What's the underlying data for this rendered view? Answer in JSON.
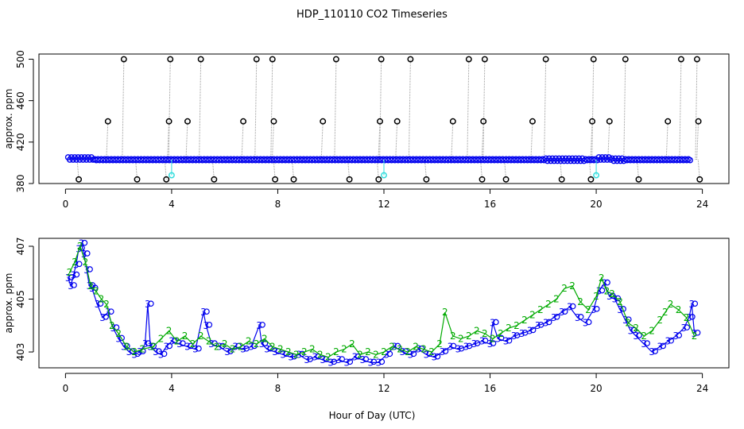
{
  "chart_data": {
    "title": "HDP_110110  CO2 Timeseries",
    "xlabel": "Hour of Day (UTC)",
    "panels": [
      {
        "type": "scatter",
        "ylabel": "approx. ppm",
        "xlim": [
          -1,
          25
        ],
        "ylim": [
          380,
          505
        ],
        "xticks": [
          0,
          4,
          8,
          12,
          16,
          20,
          24
        ],
        "yticks": [
          380,
          420,
          460,
          500
        ],
        "baseline_series": {
          "name": "",
          "color": "#0000ee",
          "x": [
            0.1,
            0.6,
            1.1,
            1.6,
            2.1,
            2.6,
            3.1,
            3.6,
            4.1,
            4.6,
            5.1,
            5.6,
            6.1,
            6.6,
            7.1,
            7.6,
            8.1,
            8.6,
            9.1,
            9.6,
            10.1,
            10.6,
            11.1,
            11.6,
            12.1,
            12.6,
            13.1,
            13.6,
            14.1,
            14.6,
            15.1,
            15.6,
            16.1,
            16.6,
            17.1,
            17.6,
            18.1,
            18.6,
            19.1,
            19.6,
            20.1,
            20.6,
            21.1,
            21.6,
            22.1,
            22.6,
            23.1,
            23.6
          ],
          "y": [
            405.5,
            406,
            404.5,
            403.5,
            403,
            402.8,
            402.8,
            403.2,
            403.5,
            403,
            403.4,
            403.1,
            403,
            403.2,
            403.3,
            402.9,
            403,
            402.8,
            402.7,
            402.5,
            402.4,
            402.3,
            402.5,
            402.4,
            403,
            403.2,
            402.8,
            402.9,
            402.8,
            403,
            403.3,
            403.5,
            403.6,
            403.4,
            403.8,
            404.2,
            404.6,
            404.9,
            405,
            404.5,
            405.5,
            405,
            403.8,
            403.5,
            403.4,
            403.8,
            404.1,
            404.2
          ]
        },
        "spikes": {
          "color": "#000000",
          "x": [
            0.5,
            1.6,
            2.2,
            2.7,
            3.8,
            3.9,
            3.95,
            4.6,
            5.1,
            5.6,
            6.7,
            7.2,
            7.8,
            7.85,
            7.9,
            8.6,
            9.7,
            10.2,
            10.7,
            11.8,
            11.85,
            11.9,
            12.5,
            13.0,
            13.6,
            14.6,
            15.2,
            15.7,
            15.75,
            15.8,
            16.6,
            17.6,
            18.1,
            18.7,
            19.8,
            19.85,
            19.9,
            20.5,
            21.1,
            21.6,
            22.7,
            23.2,
            23.8,
            23.85,
            23.9
          ],
          "y": [
            384,
            440,
            500,
            384,
            384,
            440,
            500,
            440,
            500,
            384,
            440,
            500,
            500,
            440,
            384,
            384,
            440,
            500,
            384,
            384,
            440,
            500,
            440,
            500,
            384,
            440,
            500,
            384,
            440,
            500,
            384,
            440,
            500,
            384,
            384,
            440,
            500,
            440,
            500,
            384,
            440,
            500,
            500,
            440,
            384
          ]
        },
        "cyan_points": {
          "color": "#33dddd",
          "x": [
            4.0,
            12.0,
            20.0
          ],
          "y": [
            388,
            388,
            388
          ]
        }
      },
      {
        "type": "line",
        "ylabel": "approx. ppm",
        "xlim": [
          -1,
          25
        ],
        "ylim": [
          402.4,
          407.3
        ],
        "xticks": [
          0,
          4,
          8,
          12,
          16,
          20,
          24
        ],
        "yticks": [
          403,
          405,
          407
        ],
        "series": [
          {
            "marker": "3",
            "color": "#0000ee",
            "x": [
              0.1,
              0.2,
              0.3,
              0.4,
              0.5,
              0.6,
              0.7,
              0.8,
              0.9,
              1.0,
              1.2,
              1.4,
              1.6,
              1.8,
              2.0,
              2.2,
              2.4,
              2.6,
              2.8,
              3.0,
              3.1,
              3.2,
              3.4,
              3.6,
              3.8,
              4.0,
              4.3,
              4.6,
              4.9,
              5.2,
              5.3,
              5.5,
              5.8,
              6.1,
              6.4,
              6.7,
              7.0,
              7.3,
              7.4,
              7.6,
              7.9,
              8.2,
              8.5,
              8.8,
              9.1,
              9.4,
              9.7,
              10.0,
              10.3,
              10.6,
              10.9,
              11.2,
              11.5,
              11.8,
              12.1,
              12.4,
              12.7,
              13.0,
              13.3,
              13.6,
              13.9,
              14.2,
              14.5,
              14.8,
              15.1,
              15.4,
              15.7,
              16.0,
              16.1,
              16.3,
              16.6,
              16.9,
              17.2,
              17.5,
              17.8,
              18.1,
              18.4,
              18.7,
              19.0,
              19.3,
              19.6,
              19.9,
              20.1,
              20.3,
              20.5,
              20.7,
              20.9,
              21.1,
              21.3,
              21.5,
              21.8,
              22.1,
              22.4,
              22.7,
              23.0,
              23.3,
              23.5,
              23.6,
              23.7
            ],
            "y": [
              405.8,
              405.5,
              405.9,
              406.3,
              406.9,
              407.1,
              406.7,
              406.1,
              405.5,
              405.4,
              404.8,
              404.3,
              404.5,
              403.9,
              403.5,
              403.2,
              403.0,
              402.9,
              403.0,
              403.3,
              404.8,
              403.2,
              403.0,
              402.9,
              403.2,
              403.4,
              403.3,
              403.2,
              403.1,
              404.5,
              404.0,
              403.3,
              403.2,
              403.0,
              403.2,
              403.1,
              403.2,
              404.0,
              403.3,
              403.1,
              403.0,
              402.9,
              402.8,
              402.9,
              402.7,
              402.8,
              402.7,
              402.6,
              402.7,
              402.6,
              402.8,
              402.7,
              402.6,
              402.6,
              402.9,
              403.2,
              403.0,
              402.9,
              403.1,
              402.9,
              402.8,
              403.0,
              403.2,
              403.1,
              403.2,
              403.3,
              403.4,
              403.3,
              404.1,
              403.5,
              403.4,
              403.6,
              403.7,
              403.8,
              404.0,
              404.1,
              404.3,
              404.5,
              404.7,
              404.3,
              404.1,
              404.6,
              405.3,
              405.6,
              405.1,
              405.0,
              404.6,
              404.2,
              403.8,
              403.6,
              403.3,
              403.0,
              403.2,
              403.4,
              403.6,
              403.9,
              404.3,
              404.8,
              403.7
            ]
          },
          {
            "marker": "2",
            "color": "#00aa00",
            "x": [
              0.15,
              0.35,
              0.55,
              0.75,
              0.95,
              1.15,
              1.35,
              1.55,
              1.75,
              2.0,
              2.3,
              2.6,
              2.9,
              3.3,
              3.6,
              3.9,
              4.2,
              4.5,
              4.8,
              5.1,
              5.4,
              5.7,
              6.0,
              6.3,
              6.6,
              6.9,
              7.2,
              7.5,
              7.8,
              8.1,
              8.4,
              8.7,
              9.0,
              9.3,
              9.6,
              9.9,
              10.2,
              10.5,
              10.8,
              11.1,
              11.4,
              11.7,
              12.0,
              12.3,
              12.6,
              12.9,
              13.2,
              13.5,
              13.8,
              14.1,
              14.3,
              14.6,
              14.9,
              15.2,
              15.5,
              15.8,
              16.1,
              16.4,
              16.7,
              17.0,
              17.3,
              17.6,
              17.9,
              18.2,
              18.5,
              18.8,
              19.1,
              19.4,
              19.7,
              20.0,
              20.2,
              20.4,
              20.6,
              20.9,
              21.2,
              21.5,
              21.8,
              22.1,
              22.4,
              22.6,
              22.8,
              23.1,
              23.4,
              23.7
            ],
            "y": [
              406.0,
              406.4,
              407.0,
              406.4,
              405.5,
              405.3,
              405.0,
              404.8,
              404.0,
              403.7,
              403.2,
              403.0,
              403.1,
              403.2,
              403.5,
              403.8,
              403.4,
              403.6,
              403.3,
              403.6,
              403.4,
              403.2,
              403.3,
              403.1,
              403.2,
              403.4,
              403.3,
              403.5,
              403.2,
              403.1,
              403.0,
              402.9,
              403.0,
              403.1,
              402.9,
              402.8,
              403.0,
              403.1,
              403.3,
              402.9,
              403.0,
              402.9,
              403.0,
              403.2,
              403.1,
              403.0,
              403.2,
              403.1,
              403.0,
              403.3,
              404.5,
              403.6,
              403.5,
              403.6,
              403.8,
              403.7,
              403.5,
              403.7,
              403.9,
              404.0,
              404.2,
              404.4,
              404.6,
              404.8,
              405.0,
              405.4,
              405.5,
              404.9,
              404.6,
              405.1,
              405.8,
              405.3,
              405.2,
              404.9,
              404.1,
              403.9,
              403.6,
              403.8,
              404.2,
              404.5,
              404.8,
              404.6,
              404.3,
              403.6
            ]
          }
        ]
      }
    ]
  }
}
